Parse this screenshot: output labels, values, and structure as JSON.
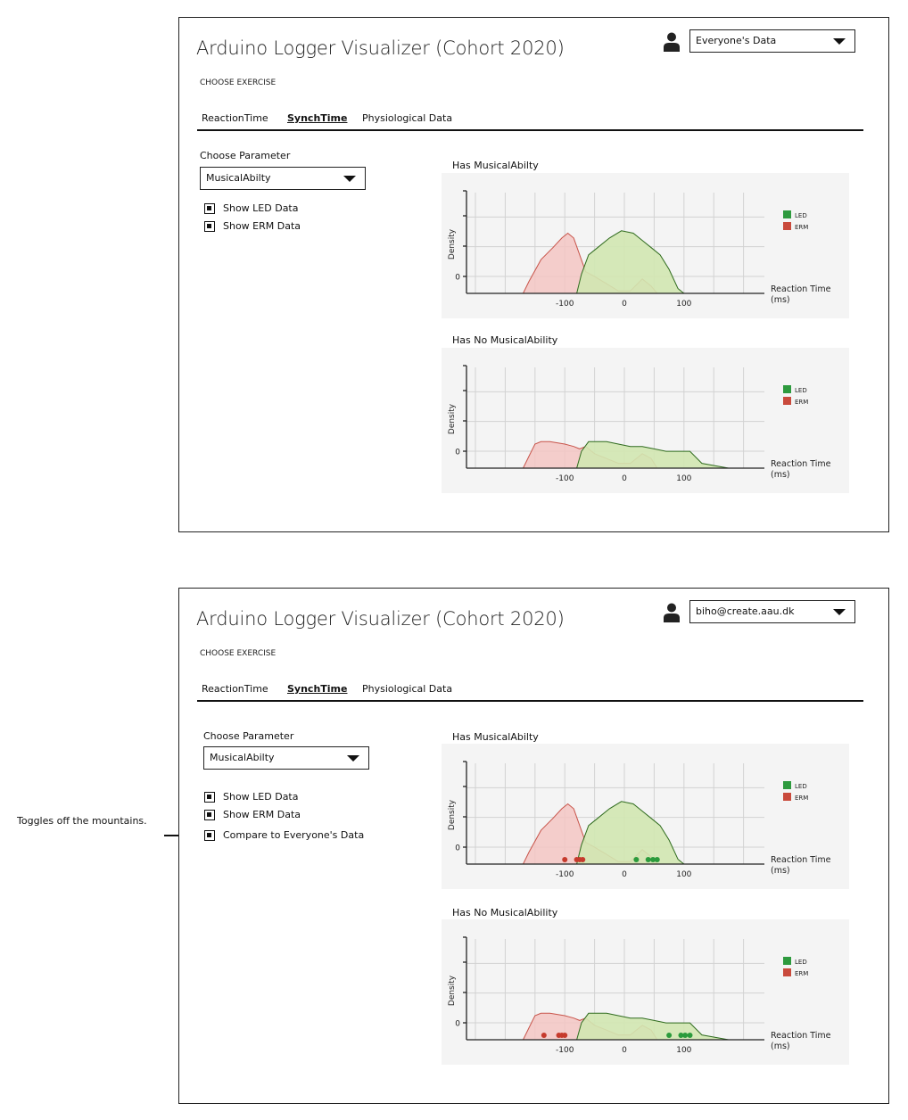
{
  "annotation": "Toggles off the mountains.",
  "colors": {
    "led_fill": "#d1e7b1",
    "led_line": "#2f6b1e",
    "erm_fill": "#f3c6c3",
    "erm_line": "#c8544a",
    "led_legend": "#2e9a3e",
    "erm_legend": "#c94a3c",
    "led_dot": "#2b9b3c",
    "erm_dot": "#c63a2c"
  },
  "panels": [
    {
      "app_title": "Arduino Logger Visualizer (Cohort 2020)",
      "choose_exercise": "CHOOSE EXERCISE",
      "user_icon": "user-icon",
      "user_select": "Everyone's Data",
      "tabs": [
        {
          "label": "ReactionTime",
          "active": false
        },
        {
          "label": "SynchTime",
          "active": true
        },
        {
          "label": "Physiological Data",
          "active": false
        }
      ],
      "param_label": "Choose Parameter",
      "param_value": "MusicalAbilty",
      "checkboxes": [
        {
          "label": "Show LED Data",
          "checked": true
        },
        {
          "label": "Show ERM Data",
          "checked": true
        }
      ],
      "charts": [
        {
          "title": "Has MusicalAbilty"
        },
        {
          "title": "Has No MusicalAbility"
        }
      ]
    },
    {
      "app_title": "Arduino Logger Visualizer (Cohort 2020)",
      "choose_exercise": "CHOOSE EXERCISE",
      "user_icon": "user-icon",
      "user_select": "biho@create.aau.dk",
      "tabs": [
        {
          "label": "ReactionTime",
          "active": false
        },
        {
          "label": "SynchTime",
          "active": true
        },
        {
          "label": "Physiological Data",
          "active": false
        }
      ],
      "param_label": "Choose Parameter",
      "param_value": "MusicalAbilty",
      "checkboxes": [
        {
          "label": "Show LED Data",
          "checked": true
        },
        {
          "label": "Show ERM Data",
          "checked": true
        },
        {
          "label": "Compare to Everyone's Data",
          "checked": true
        }
      ],
      "charts": [
        {
          "title": "Has MusicalAbilty"
        },
        {
          "title": "Has No MusicalAbility"
        }
      ]
    }
  ],
  "chart_data": [
    {
      "type": "area",
      "title": "Has MusicalAbilty",
      "xlabel": "Reaction Time (ms)",
      "ylabel": "Density",
      "x_ticks": [
        -100,
        0,
        100
      ],
      "y_ticks": [
        0
      ],
      "xlim": [
        -265,
        235
      ],
      "ylim": [
        -0.6,
        3
      ],
      "legend_position": "right",
      "series": [
        {
          "name": "LED",
          "x": [
            -265,
            -80,
            -72,
            -60,
            -45,
            -25,
            -5,
            15,
            30,
            45,
            60,
            75,
            90,
            100,
            155,
            235
          ],
          "y": [
            0,
            0,
            0.8,
            1.6,
            1.9,
            2.3,
            2.6,
            2.5,
            2.2,
            1.9,
            1.6,
            1.0,
            0.2,
            0,
            0,
            0
          ]
        },
        {
          "name": "ERM",
          "x": [
            -265,
            -170,
            -160,
            -140,
            -120,
            -105,
            -95,
            -85,
            -75,
            -65,
            -50,
            -30,
            -10,
            10,
            30,
            45,
            55,
            235
          ],
          "y": [
            0,
            0,
            0.5,
            1.4,
            1.9,
            2.3,
            2.5,
            2.3,
            1.6,
            0.9,
            0.7,
            0.4,
            0.1,
            0.1,
            0.6,
            0.3,
            0,
            0
          ]
        }
      ]
    },
    {
      "type": "area",
      "title": "Has No MusicalAbility",
      "xlabel": "Reaction Time (ms)",
      "ylabel": "Density",
      "x_ticks": [
        -100,
        0,
        100
      ],
      "y_ticks": [
        0
      ],
      "xlim": [
        -265,
        235
      ],
      "ylim": [
        -0.6,
        3
      ],
      "legend_position": "right",
      "series": [
        {
          "name": "LED",
          "x": [
            -265,
            -80,
            -72,
            -60,
            -50,
            -30,
            -10,
            10,
            30,
            50,
            70,
            80,
            110,
            130,
            175,
            235
          ],
          "y": [
            0,
            0,
            0.7,
            1.1,
            1.1,
            1.1,
            1.0,
            0.9,
            0.9,
            0.8,
            0.7,
            0.7,
            0.7,
            0.2,
            0,
            0
          ]
        },
        {
          "name": "ERM",
          "x": [
            -265,
            -170,
            -160,
            -150,
            -140,
            -125,
            -100,
            -85,
            -75,
            -65,
            -50,
            -30,
            -10,
            10,
            30,
            45,
            55,
            235
          ],
          "y": [
            0,
            0,
            0.5,
            1.0,
            1.1,
            1.1,
            1.0,
            0.9,
            0.8,
            0.9,
            0.6,
            0.4,
            0.2,
            0.2,
            0.6,
            0.4,
            0,
            0
          ]
        }
      ]
    },
    {
      "type": "area",
      "title": "Has MusicalAbilty",
      "xlabel": "Reaction Time (ms)",
      "ylabel": "Density",
      "x_ticks": [
        -100,
        0,
        100
      ],
      "y_ticks": [
        0
      ],
      "xlim": [
        -265,
        235
      ],
      "ylim": [
        -0.6,
        3
      ],
      "legend_position": "right",
      "series": [
        {
          "name": "LED",
          "x": [
            -265,
            -80,
            -72,
            -60,
            -45,
            -25,
            -5,
            15,
            30,
            45,
            60,
            75,
            90,
            100,
            155,
            235
          ],
          "y": [
            0,
            0,
            0.8,
            1.6,
            1.9,
            2.3,
            2.6,
            2.5,
            2.2,
            1.9,
            1.6,
            1.0,
            0.2,
            0,
            0,
            0
          ]
        },
        {
          "name": "ERM",
          "x": [
            -265,
            -170,
            -160,
            -140,
            -120,
            -105,
            -95,
            -85,
            -75,
            -65,
            -50,
            -30,
            -10,
            10,
            30,
            45,
            55,
            235
          ],
          "y": [
            0,
            0,
            0.5,
            1.4,
            1.9,
            2.3,
            2.5,
            2.3,
            1.6,
            0.9,
            0.7,
            0.4,
            0.1,
            0.1,
            0.6,
            0.3,
            0,
            0
          ]
        }
      ],
      "points": [
        {
          "series": "ERM",
          "x": [
            -100,
            -80,
            -75,
            -70
          ],
          "y": -0.3
        },
        {
          "series": "LED",
          "x": [
            20,
            40,
            48,
            55
          ],
          "y": -0.3
        }
      ]
    },
    {
      "type": "area",
      "title": "Has No MusicalAbility",
      "xlabel": "Reaction Time (ms)",
      "ylabel": "Density",
      "x_ticks": [
        -100,
        0,
        100
      ],
      "y_ticks": [
        0
      ],
      "xlim": [
        -265,
        235
      ],
      "ylim": [
        -0.6,
        3
      ],
      "legend_position": "right",
      "series": [
        {
          "name": "LED",
          "x": [
            -265,
            -80,
            -72,
            -60,
            -50,
            -30,
            -10,
            10,
            30,
            50,
            70,
            80,
            110,
            130,
            175,
            235
          ],
          "y": [
            0,
            0,
            0.7,
            1.1,
            1.1,
            1.1,
            1.0,
            0.9,
            0.9,
            0.8,
            0.7,
            0.7,
            0.7,
            0.2,
            0,
            0
          ]
        },
        {
          "name": "ERM",
          "x": [
            -265,
            -170,
            -160,
            -150,
            -140,
            -125,
            -100,
            -85,
            -75,
            -65,
            -50,
            -30,
            -10,
            10,
            30,
            45,
            55,
            235
          ],
          "y": [
            0,
            0,
            0.5,
            1.0,
            1.1,
            1.1,
            1.0,
            0.9,
            0.8,
            0.9,
            0.6,
            0.4,
            0.2,
            0.2,
            0.6,
            0.4,
            0,
            0
          ]
        }
      ],
      "points": [
        {
          "series": "ERM",
          "x": [
            -135,
            -110,
            -105,
            -100
          ],
          "y": -0.3
        },
        {
          "series": "LED",
          "x": [
            75,
            95,
            102,
            110
          ],
          "y": -0.3
        }
      ]
    }
  ]
}
